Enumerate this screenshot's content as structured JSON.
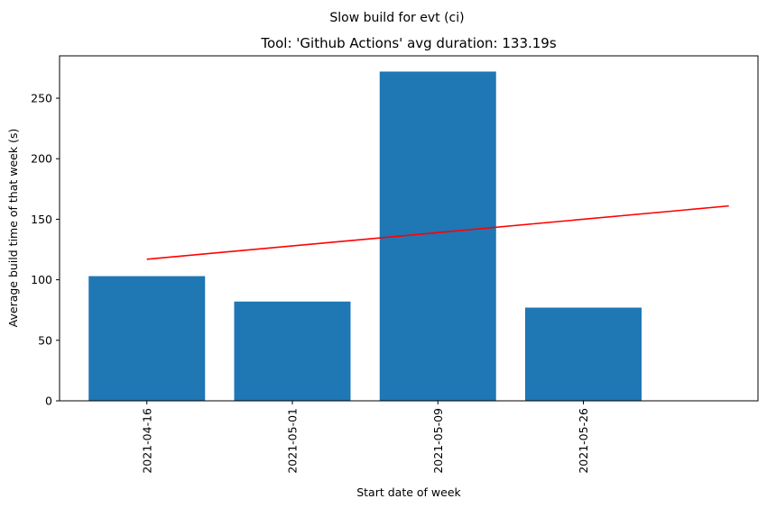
{
  "chart_data": {
    "type": "bar",
    "suptitle": "Slow build for evt (ci)",
    "title": "Tool: 'Github Actions' avg duration: 133.19s",
    "xlabel": "Start date of week",
    "ylabel": "Average build time of that week (s)",
    "categories": [
      "2021-04-16",
      "2021-05-01",
      "2021-05-09",
      "2021-05-26"
    ],
    "values": [
      103,
      82,
      272,
      77
    ],
    "bar_color": "#1f77b4",
    "trend_line": {
      "color": "#ff0000",
      "start": {
        "x": 0,
        "y": 117
      },
      "end": {
        "x": 4,
        "y": 161
      }
    },
    "ylim": [
      0,
      285
    ],
    "xlim": [
      -0.6,
      4.2
    ],
    "yticks": [
      0,
      50,
      100,
      150,
      200,
      250
    ],
    "grid": false,
    "legend": "none",
    "x_tick_rotation": "vertical"
  }
}
